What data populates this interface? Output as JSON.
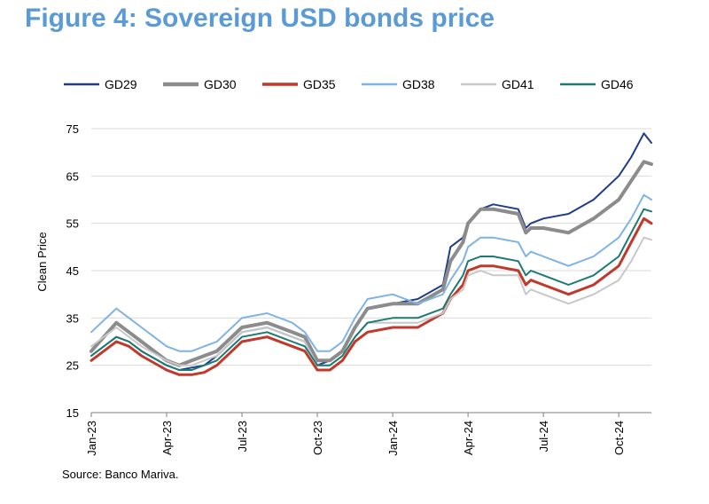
{
  "title": "Figure 4: Sovereign USD bonds price",
  "source": "Source: Banco Mariva.",
  "chart_data": {
    "type": "line",
    "title": "Figure 4: Sovereign USD bonds price",
    "xlabel": "",
    "ylabel": "Clean Price",
    "ylim": [
      15,
      75
    ],
    "yticks": [
      15,
      25,
      35,
      45,
      55,
      65,
      75
    ],
    "grid": true,
    "legend_position": "top",
    "xtick_labels": [
      "Jan-23",
      "Apr-23",
      "Jul-23",
      "Oct-23",
      "Jan-24",
      "Apr-24",
      "Jul-24",
      "Oct-24"
    ],
    "xtick_positions": [
      0,
      3,
      6,
      9,
      12,
      15,
      18,
      21
    ],
    "x_range": [
      0,
      22.3
    ],
    "x_unit": "months since Jan-23",
    "series": [
      {
        "name": "GD29",
        "color": "#1f3c88",
        "width": 2,
        "points": [
          [
            0,
            27
          ],
          [
            1,
            31
          ],
          [
            1.5,
            30
          ],
          [
            2,
            28
          ],
          [
            3,
            25
          ],
          [
            3.5,
            24
          ],
          [
            4,
            24.5
          ],
          [
            4.5,
            25
          ],
          [
            5,
            27
          ],
          [
            6,
            32
          ],
          [
            7,
            33
          ],
          [
            8,
            31
          ],
          [
            8.5,
            30
          ],
          [
            9,
            25
          ],
          [
            9.5,
            26
          ],
          [
            10,
            28
          ],
          [
            10.5,
            33
          ],
          [
            11,
            37
          ],
          [
            12,
            38
          ],
          [
            13,
            39
          ],
          [
            14,
            42
          ],
          [
            14.3,
            50
          ],
          [
            14.8,
            52
          ],
          [
            15,
            55
          ],
          [
            15.5,
            58
          ],
          [
            16,
            59
          ],
          [
            17,
            58
          ],
          [
            17.3,
            54
          ],
          [
            17.5,
            55
          ],
          [
            18,
            56
          ],
          [
            19,
            57
          ],
          [
            20,
            60
          ],
          [
            21,
            65
          ],
          [
            21.5,
            69
          ],
          [
            22,
            74
          ],
          [
            22.3,
            72
          ]
        ]
      },
      {
        "name": "GD30",
        "color": "#8c8c8c",
        "width": 4,
        "points": [
          [
            0,
            28
          ],
          [
            1,
            34
          ],
          [
            1.5,
            32
          ],
          [
            2,
            30
          ],
          [
            3,
            26
          ],
          [
            3.5,
            25
          ],
          [
            4,
            26
          ],
          [
            4.5,
            27
          ],
          [
            5,
            28
          ],
          [
            6,
            33
          ],
          [
            7,
            34
          ],
          [
            8,
            32
          ],
          [
            8.5,
            31
          ],
          [
            9,
            26
          ],
          [
            9.5,
            26
          ],
          [
            10,
            28
          ],
          [
            10.5,
            33
          ],
          [
            11,
            37
          ],
          [
            12,
            38
          ],
          [
            13,
            38
          ],
          [
            14,
            41
          ],
          [
            14.3,
            47
          ],
          [
            14.8,
            51
          ],
          [
            15,
            55
          ],
          [
            15.5,
            58
          ],
          [
            16,
            58
          ],
          [
            17,
            57
          ],
          [
            17.3,
            53
          ],
          [
            17.5,
            54
          ],
          [
            18,
            54
          ],
          [
            19,
            53
          ],
          [
            20,
            56
          ],
          [
            21,
            60
          ],
          [
            21.5,
            64
          ],
          [
            22,
            68
          ],
          [
            22.3,
            67.5
          ]
        ]
      },
      {
        "name": "GD35",
        "color": "#c0392b",
        "width": 3,
        "points": [
          [
            0,
            26
          ],
          [
            1,
            30
          ],
          [
            1.5,
            29
          ],
          [
            2,
            27
          ],
          [
            3,
            24
          ],
          [
            3.5,
            23
          ],
          [
            4,
            23
          ],
          [
            4.5,
            23.5
          ],
          [
            5,
            25
          ],
          [
            6,
            30
          ],
          [
            7,
            31
          ],
          [
            8,
            29
          ],
          [
            8.5,
            28
          ],
          [
            9,
            24
          ],
          [
            9.5,
            24
          ],
          [
            10,
            26
          ],
          [
            10.5,
            30
          ],
          [
            11,
            32
          ],
          [
            12,
            33
          ],
          [
            13,
            33
          ],
          [
            14,
            36
          ],
          [
            14.3,
            39
          ],
          [
            14.8,
            42
          ],
          [
            15,
            45
          ],
          [
            15.5,
            46
          ],
          [
            16,
            46
          ],
          [
            17,
            45
          ],
          [
            17.3,
            42
          ],
          [
            17.5,
            43
          ],
          [
            18,
            42
          ],
          [
            19,
            40
          ],
          [
            20,
            42
          ],
          [
            21,
            46
          ],
          [
            21.5,
            51
          ],
          [
            22,
            56
          ],
          [
            22.3,
            55
          ]
        ]
      },
      {
        "name": "GD38",
        "color": "#7fb3e6",
        "width": 2,
        "points": [
          [
            0,
            32
          ],
          [
            1,
            37
          ],
          [
            1.5,
            35
          ],
          [
            2,
            33
          ],
          [
            3,
            29
          ],
          [
            3.5,
            28
          ],
          [
            4,
            28
          ],
          [
            4.5,
            29
          ],
          [
            5,
            30
          ],
          [
            6,
            35
          ],
          [
            7,
            36
          ],
          [
            8,
            34
          ],
          [
            8.5,
            32
          ],
          [
            9,
            28
          ],
          [
            9.5,
            28
          ],
          [
            10,
            30
          ],
          [
            10.5,
            35
          ],
          [
            11,
            39
          ],
          [
            12,
            40
          ],
          [
            13,
            38
          ],
          [
            14,
            40
          ],
          [
            14.3,
            43
          ],
          [
            14.8,
            47
          ],
          [
            15,
            50
          ],
          [
            15.5,
            52
          ],
          [
            16,
            52
          ],
          [
            17,
            51
          ],
          [
            17.3,
            48
          ],
          [
            17.5,
            49
          ],
          [
            18,
            48
          ],
          [
            19,
            46
          ],
          [
            20,
            48
          ],
          [
            21,
            52
          ],
          [
            21.5,
            56
          ],
          [
            22,
            61
          ],
          [
            22.3,
            60
          ]
        ]
      },
      {
        "name": "GD41",
        "color": "#c8c8c8",
        "width": 2,
        "points": [
          [
            0,
            29
          ],
          [
            1,
            33
          ],
          [
            1.5,
            31
          ],
          [
            2,
            29
          ],
          [
            3,
            26
          ],
          [
            3.5,
            25
          ],
          [
            4,
            25
          ],
          [
            4.5,
            26
          ],
          [
            5,
            27
          ],
          [
            6,
            32
          ],
          [
            7,
            33
          ],
          [
            8,
            31
          ],
          [
            8.5,
            30
          ],
          [
            9,
            25
          ],
          [
            9.5,
            25
          ],
          [
            10,
            27
          ],
          [
            10.5,
            31
          ],
          [
            11,
            34
          ],
          [
            12,
            34
          ],
          [
            13,
            34
          ],
          [
            14,
            36
          ],
          [
            14.3,
            39
          ],
          [
            14.8,
            41
          ],
          [
            15,
            44
          ],
          [
            15.5,
            45
          ],
          [
            16,
            44
          ],
          [
            17,
            44
          ],
          [
            17.3,
            40
          ],
          [
            17.5,
            41
          ],
          [
            18,
            40
          ],
          [
            19,
            38
          ],
          [
            20,
            40
          ],
          [
            21,
            43
          ],
          [
            21.5,
            47
          ],
          [
            22,
            52
          ],
          [
            22.3,
            51.5
          ]
        ]
      },
      {
        "name": "GD46",
        "color": "#1b7a73",
        "width": 2,
        "points": [
          [
            0,
            27
          ],
          [
            1,
            31
          ],
          [
            1.5,
            30
          ],
          [
            2,
            28
          ],
          [
            3,
            25
          ],
          [
            3.5,
            24
          ],
          [
            4,
            24
          ],
          [
            4.5,
            25
          ],
          [
            5,
            26
          ],
          [
            6,
            31
          ],
          [
            7,
            32
          ],
          [
            8,
            30
          ],
          [
            8.5,
            29
          ],
          [
            9,
            25
          ],
          [
            9.5,
            25
          ],
          [
            10,
            27
          ],
          [
            10.5,
            31
          ],
          [
            11,
            34
          ],
          [
            12,
            35
          ],
          [
            13,
            35
          ],
          [
            14,
            37
          ],
          [
            14.3,
            40
          ],
          [
            14.8,
            44
          ],
          [
            15,
            47
          ],
          [
            15.5,
            48
          ],
          [
            16,
            48
          ],
          [
            17,
            47
          ],
          [
            17.3,
            44
          ],
          [
            17.5,
            45
          ],
          [
            18,
            44
          ],
          [
            19,
            42
          ],
          [
            20,
            44
          ],
          [
            21,
            48
          ],
          [
            21.5,
            53
          ],
          [
            22,
            58
          ],
          [
            22.3,
            57.5
          ]
        ]
      }
    ]
  }
}
